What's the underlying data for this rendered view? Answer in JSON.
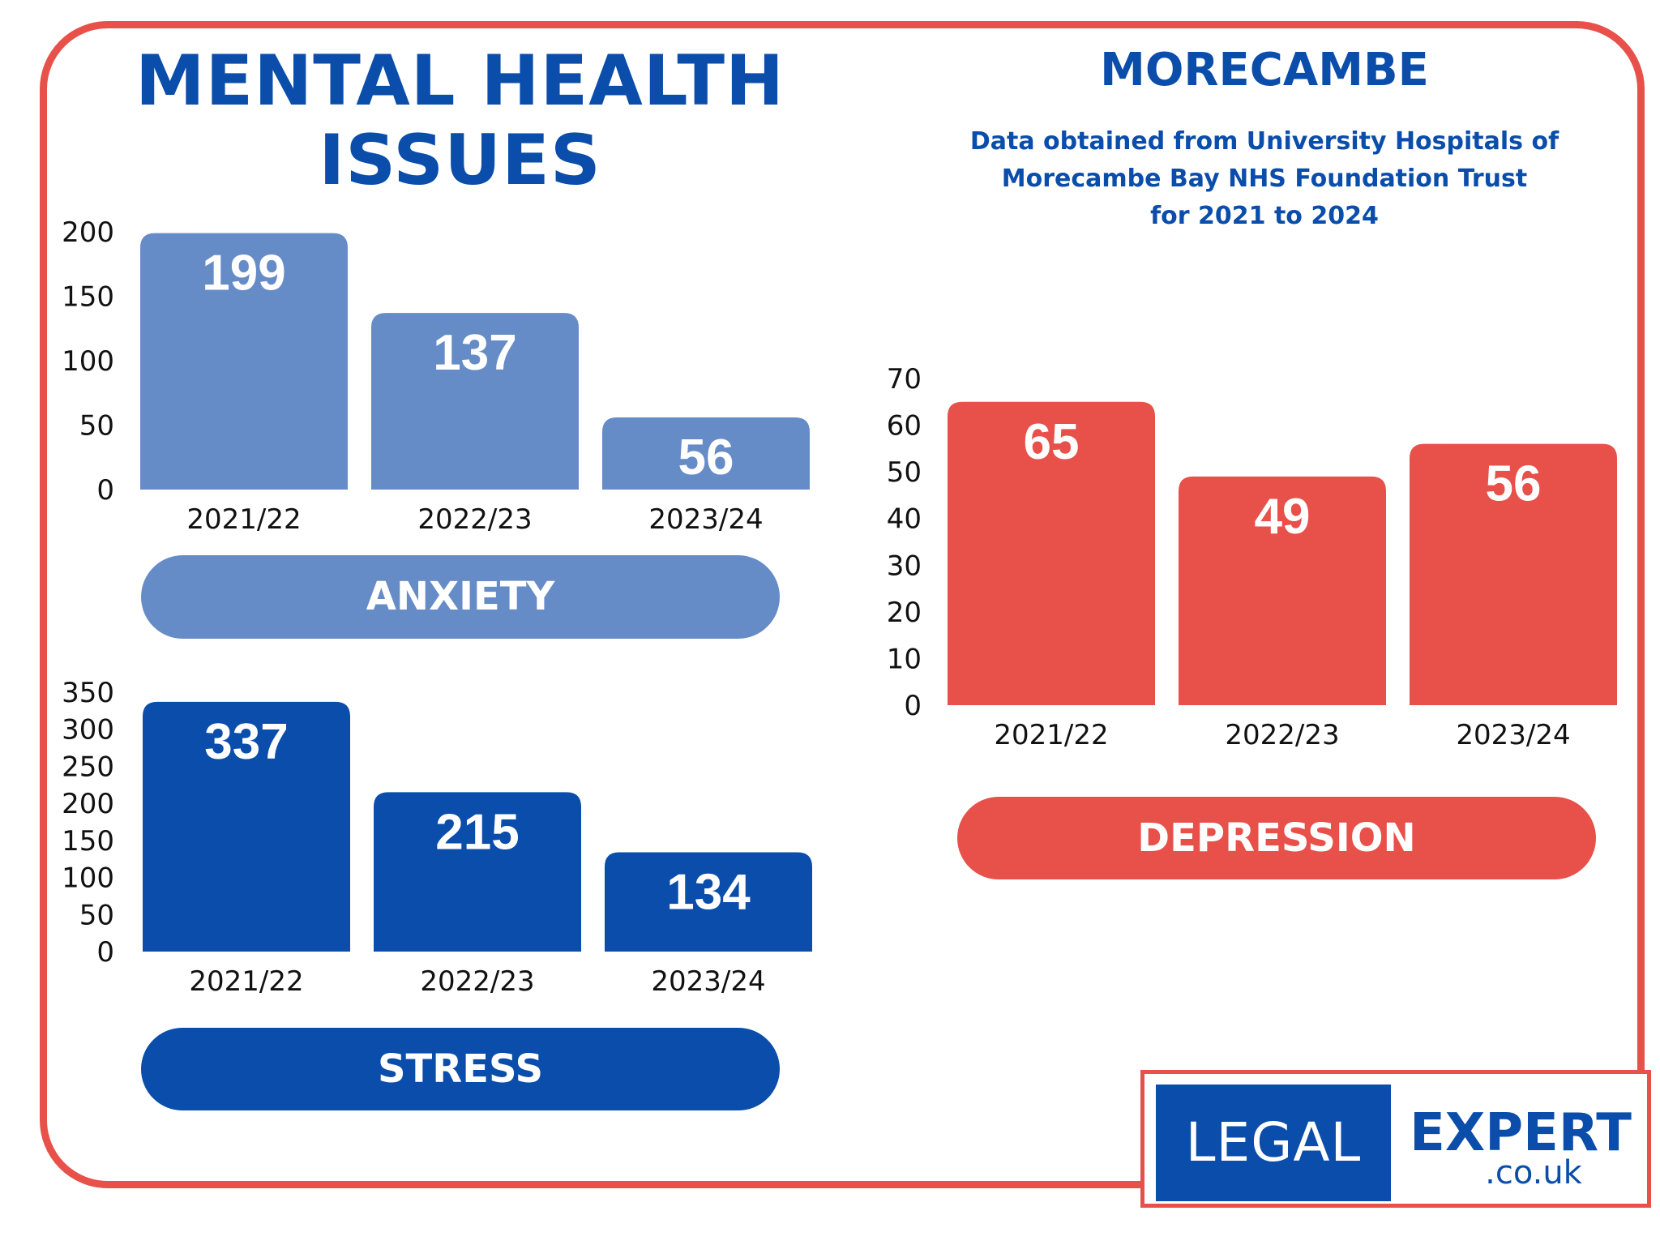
{
  "header": {
    "title_line1": "MENTAL HEALTH",
    "title_line2": "ISSUES",
    "location": "MORECAMBE",
    "source_line1": "Data obtained from University Hospitals of",
    "source_line2": "Morecambe Bay NHS Foundation Trust",
    "source_line3": "for 2021 to 2024"
  },
  "colors": {
    "anxiety": "#668cc8",
    "stress": "#0a4daa",
    "depression": "#e8504a",
    "frame": "#e8504a",
    "title": "#0a4daa"
  },
  "chart_data": [
    {
      "type": "bar",
      "title": "ANXIETY",
      "categories": [
        "2021/22",
        "2022/23",
        "2023/24"
      ],
      "values": [
        199,
        137,
        56
      ],
      "data_labels": [
        "199",
        "137",
        "56"
      ],
      "yticks": [
        "0",
        "50",
        "100",
        "150",
        "200"
      ],
      "ylim": [
        0,
        200
      ],
      "xlabel": "",
      "ylabel": "",
      "grid": false
    },
    {
      "type": "bar",
      "title": "STRESS",
      "categories": [
        "2021/22",
        "2022/23",
        "2023/24"
      ],
      "values": [
        337,
        215,
        134
      ],
      "data_labels": [
        "337",
        "215",
        "134"
      ],
      "yticks": [
        "0",
        "50",
        "100",
        "150",
        "200",
        "250",
        "300",
        "350"
      ],
      "ylim": [
        0,
        350
      ],
      "xlabel": "",
      "ylabel": "",
      "grid": false
    },
    {
      "type": "bar",
      "title": "DEPRESSION",
      "categories": [
        "2021/22",
        "2022/23",
        "2023/24"
      ],
      "values": [
        65,
        49,
        56
      ],
      "data_labels": [
        "65",
        "49",
        "56"
      ],
      "yticks": [
        "0",
        "10",
        "20",
        "30",
        "40",
        "50",
        "60",
        "70"
      ],
      "ylim": [
        0,
        70
      ],
      "xlabel": "",
      "ylabel": "",
      "grid": false
    }
  ],
  "logo": {
    "part1": "LEGAL",
    "part2": "EXPERT",
    "part3": ".co.uk"
  }
}
